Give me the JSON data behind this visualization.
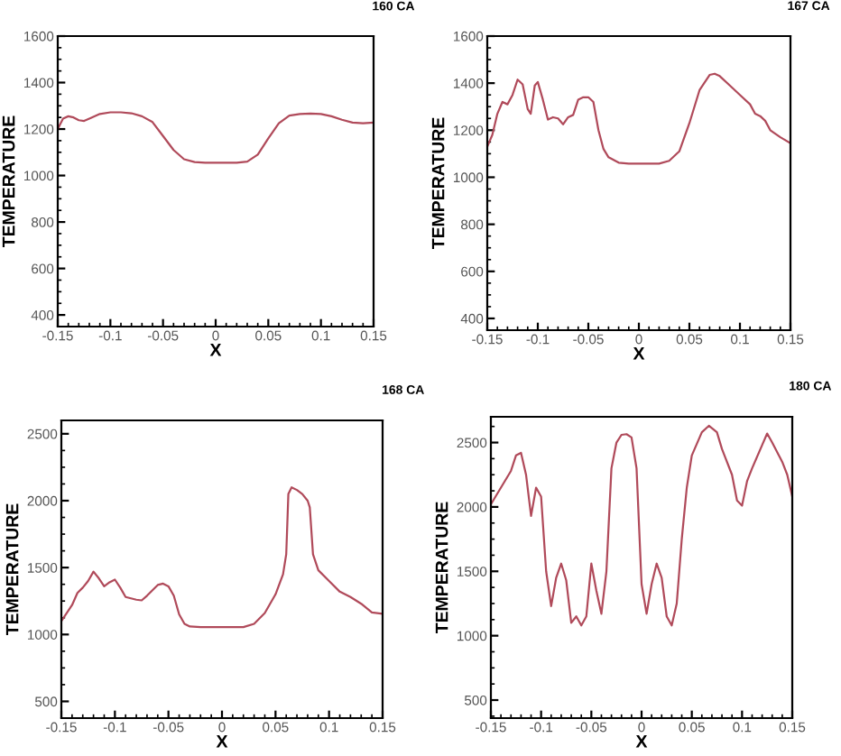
{
  "chart_data": [
    {
      "type": "line",
      "title": "160 CA",
      "xlabel": "X",
      "ylabel": "TEMPERATURE",
      "xlim": [
        -0.15,
        0.15
      ],
      "xticks": [
        -0.15,
        -0.1,
        -0.05,
        0,
        0.05,
        0.1,
        0.15
      ],
      "ylim": [
        350,
        1600
      ],
      "yticks": [
        400,
        600,
        800,
        1000,
        1200,
        1400,
        1600
      ],
      "grid": false,
      "legend": false,
      "series": [
        {
          "color": "#b04a5a",
          "x": [
            -0.15,
            -0.145,
            -0.14,
            -0.135,
            -0.13,
            -0.125,
            -0.12,
            -0.11,
            -0.1,
            -0.09,
            -0.08,
            -0.07,
            -0.06,
            -0.05,
            -0.04,
            -0.03,
            -0.02,
            -0.01,
            0,
            0.01,
            0.02,
            0.03,
            0.04,
            0.05,
            0.06,
            0.07,
            0.08,
            0.09,
            0.1,
            0.11,
            0.12,
            0.13,
            0.14,
            0.15
          ],
          "values": [
            1200,
            1245,
            1255,
            1250,
            1238,
            1235,
            1245,
            1265,
            1272,
            1272,
            1268,
            1255,
            1230,
            1170,
            1110,
            1070,
            1058,
            1055,
            1055,
            1055,
            1055,
            1060,
            1090,
            1160,
            1225,
            1258,
            1265,
            1267,
            1265,
            1255,
            1240,
            1228,
            1225,
            1228
          ]
        }
      ]
    },
    {
      "type": "line",
      "title": "167 CA",
      "xlabel": "X",
      "ylabel": "TEMPERATURE",
      "xlim": [
        -0.15,
        0.15
      ],
      "xticks": [
        -0.15,
        -0.1,
        -0.05,
        0,
        0.05,
        0.1,
        0.15
      ],
      "ylim": [
        350,
        1600
      ],
      "yticks": [
        400,
        600,
        800,
        1000,
        1200,
        1400,
        1600
      ],
      "grid": false,
      "legend": false,
      "series": [
        {
          "color": "#b04a5a",
          "x": [
            -0.15,
            -0.145,
            -0.14,
            -0.135,
            -0.13,
            -0.125,
            -0.12,
            -0.115,
            -0.11,
            -0.107,
            -0.103,
            -0.1,
            -0.095,
            -0.09,
            -0.085,
            -0.08,
            -0.075,
            -0.07,
            -0.065,
            -0.06,
            -0.055,
            -0.05,
            -0.045,
            -0.04,
            -0.035,
            -0.03,
            -0.02,
            -0.01,
            0,
            0.02,
            0.03,
            0.04,
            0.05,
            0.06,
            0.07,
            0.075,
            0.08,
            0.09,
            0.1,
            0.11,
            0.115,
            0.12,
            0.125,
            0.13,
            0.14,
            0.15
          ],
          "values": [
            1130,
            1180,
            1270,
            1320,
            1310,
            1350,
            1415,
            1395,
            1290,
            1270,
            1390,
            1405,
            1330,
            1245,
            1255,
            1250,
            1225,
            1255,
            1265,
            1330,
            1340,
            1340,
            1320,
            1200,
            1120,
            1085,
            1062,
            1058,
            1058,
            1058,
            1070,
            1110,
            1230,
            1370,
            1435,
            1440,
            1430,
            1390,
            1350,
            1310,
            1270,
            1260,
            1240,
            1200,
            1170,
            1145
          ]
        }
      ]
    },
    {
      "type": "line",
      "title": "168 CA",
      "xlabel": "X",
      "ylabel": "TEMPERATURE",
      "xlim": [
        -0.15,
        0.15
      ],
      "xticks": [
        -0.15,
        -0.1,
        -0.05,
        0,
        0.05,
        0.1,
        0.15
      ],
      "ylim": [
        375,
        2600
      ],
      "yticks": [
        500,
        1000,
        1500,
        2000,
        2500
      ],
      "grid": false,
      "legend": false,
      "series": [
        {
          "color": "#b04a5a",
          "x": [
            -0.15,
            -0.14,
            -0.135,
            -0.13,
            -0.125,
            -0.12,
            -0.115,
            -0.11,
            -0.105,
            -0.1,
            -0.095,
            -0.09,
            -0.08,
            -0.075,
            -0.07,
            -0.06,
            -0.055,
            -0.05,
            -0.045,
            -0.04,
            -0.035,
            -0.03,
            -0.02,
            0,
            0.02,
            0.03,
            0.04,
            0.05,
            0.057,
            0.06,
            0.062,
            0.065,
            0.07,
            0.075,
            0.08,
            0.082,
            0.085,
            0.09,
            0.1,
            0.11,
            0.12,
            0.13,
            0.14,
            0.15
          ],
          "values": [
            1100,
            1220,
            1310,
            1350,
            1400,
            1470,
            1420,
            1360,
            1390,
            1410,
            1350,
            1280,
            1260,
            1255,
            1290,
            1370,
            1380,
            1360,
            1290,
            1150,
            1080,
            1060,
            1055,
            1055,
            1055,
            1080,
            1160,
            1300,
            1450,
            1600,
            2050,
            2100,
            2080,
            2050,
            2000,
            1950,
            1600,
            1480,
            1400,
            1320,
            1280,
            1230,
            1165,
            1155
          ]
        }
      ]
    },
    {
      "type": "line",
      "title": "180 CA",
      "xlabel": "X",
      "ylabel": "TEMPERATURE",
      "xlim": [
        -0.15,
        0.15
      ],
      "xticks": [
        -0.15,
        -0.1,
        -0.05,
        0,
        0.05,
        0.1,
        0.15
      ],
      "ylim": [
        360,
        2700
      ],
      "yticks": [
        500,
        1000,
        1500,
        2000,
        2500
      ],
      "grid": false,
      "legend": false,
      "series": [
        {
          "color": "#b04a5a",
          "x": [
            -0.15,
            -0.14,
            -0.13,
            -0.125,
            -0.12,
            -0.115,
            -0.11,
            -0.105,
            -0.1,
            -0.095,
            -0.09,
            -0.085,
            -0.08,
            -0.075,
            -0.07,
            -0.065,
            -0.06,
            -0.055,
            -0.05,
            -0.045,
            -0.04,
            -0.035,
            -0.03,
            -0.025,
            -0.02,
            -0.015,
            -0.01,
            -0.005,
            0,
            0.005,
            0.01,
            0.015,
            0.02,
            0.025,
            0.03,
            0.035,
            0.04,
            0.045,
            0.05,
            0.06,
            0.067,
            0.075,
            0.08,
            0.09,
            0.095,
            0.1,
            0.105,
            0.11,
            0.12,
            0.125,
            0.13,
            0.14,
            0.145,
            0.15
          ],
          "values": [
            2020,
            2150,
            2280,
            2400,
            2420,
            2250,
            1930,
            2150,
            2080,
            1500,
            1230,
            1450,
            1560,
            1430,
            1100,
            1150,
            1080,
            1150,
            1560,
            1350,
            1170,
            1500,
            2300,
            2500,
            2560,
            2565,
            2540,
            2300,
            1400,
            1170,
            1400,
            1560,
            1450,
            1150,
            1080,
            1250,
            1750,
            2150,
            2400,
            2580,
            2630,
            2580,
            2450,
            2250,
            2050,
            2010,
            2200,
            2300,
            2480,
            2570,
            2500,
            2350,
            2250,
            2080
          ]
        }
      ]
    }
  ]
}
